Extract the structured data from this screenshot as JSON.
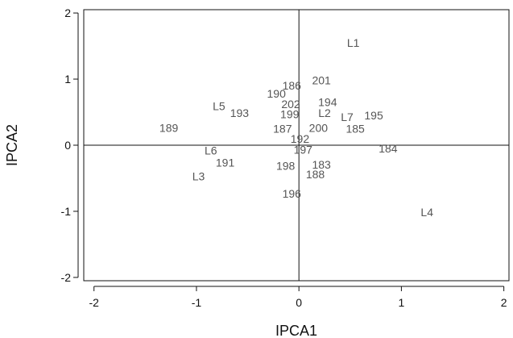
{
  "chart_data": {
    "type": "scatter",
    "title": "",
    "xlabel": "IPCA1",
    "ylabel": "IPCA2",
    "xlim": [
      -2.1,
      2.05
    ],
    "ylim": [
      -2.05,
      2.05
    ],
    "xticks": [
      -2,
      -1,
      0,
      1,
      2
    ],
    "yticks": [
      -2,
      -1,
      0,
      1,
      2
    ],
    "reference_lines": {
      "x": 0,
      "y": 0
    },
    "grid": false,
    "points": [
      {
        "label": "L1",
        "x": 0.53,
        "y": 1.55
      },
      {
        "label": "201",
        "x": 0.22,
        "y": 0.98
      },
      {
        "label": "186",
        "x": -0.07,
        "y": 0.9
      },
      {
        "label": "190",
        "x": -0.22,
        "y": 0.78
      },
      {
        "label": "202",
        "x": -0.08,
        "y": 0.62
      },
      {
        "label": "194",
        "x": 0.28,
        "y": 0.65
      },
      {
        "label": "L5",
        "x": -0.78,
        "y": 0.59
      },
      {
        "label": "193",
        "x": -0.58,
        "y": 0.49
      },
      {
        "label": "199",
        "x": -0.09,
        "y": 0.47
      },
      {
        "label": "L2",
        "x": 0.25,
        "y": 0.49
      },
      {
        "label": "L7",
        "x": 0.47,
        "y": 0.43
      },
      {
        "label": "195",
        "x": 0.73,
        "y": 0.45
      },
      {
        "label": "189",
        "x": -1.27,
        "y": 0.26
      },
      {
        "label": "187",
        "x": -0.16,
        "y": 0.25
      },
      {
        "label": "200",
        "x": 0.19,
        "y": 0.26
      },
      {
        "label": "185",
        "x": 0.55,
        "y": 0.25
      },
      {
        "label": "192",
        "x": 0.01,
        "y": 0.1
      },
      {
        "label": "L6",
        "x": -0.86,
        "y": -0.08
      },
      {
        "label": "197",
        "x": 0.04,
        "y": -0.07
      },
      {
        "label": "184",
        "x": 0.87,
        "y": -0.05
      },
      {
        "label": "191",
        "x": -0.72,
        "y": -0.26
      },
      {
        "label": "198",
        "x": -0.13,
        "y": -0.31
      },
      {
        "label": "183",
        "x": 0.22,
        "y": -0.29
      },
      {
        "label": "L3",
        "x": -0.98,
        "y": -0.47
      },
      {
        "label": "188",
        "x": 0.16,
        "y": -0.44
      },
      {
        "label": "196",
        "x": -0.07,
        "y": -0.73
      },
      {
        "label": "L4",
        "x": 1.25,
        "y": -1.01
      }
    ]
  }
}
